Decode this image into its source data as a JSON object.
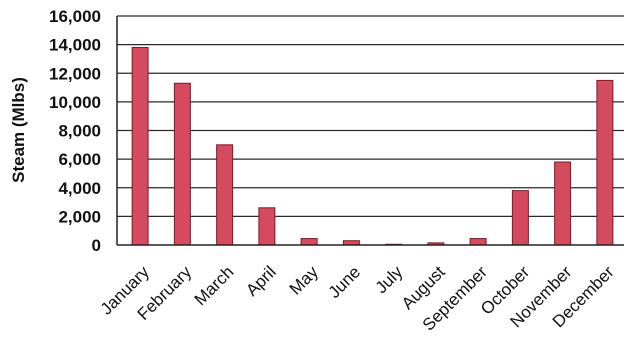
{
  "chart_data": {
    "type": "bar",
    "title": "",
    "xlabel": "",
    "ylabel": "Steam (Mlbs)",
    "categories": [
      "January",
      "February",
      "March",
      "April",
      "May",
      "June",
      "July",
      "August",
      "September",
      "October",
      "November",
      "December"
    ],
    "series": [
      {
        "values": [
          13800,
          11300,
          7000,
          2600,
          450,
          300,
          50,
          150,
          450,
          3800,
          5800,
          11500
        ]
      }
    ],
    "ylim": [
      0,
      16000
    ],
    "yticks": [
      "0",
      "2,000",
      "4,000",
      "6,000",
      "8,000",
      "10,000",
      "12,000",
      "14,000",
      "16,000"
    ],
    "ytick_values": [
      0,
      2000,
      4000,
      6000,
      8000,
      10000,
      12000,
      14000,
      16000
    ],
    "grid": true,
    "legend": "none",
    "bar_color": "#d44a5e",
    "bar_edge_color": "#7a1b2a"
  }
}
